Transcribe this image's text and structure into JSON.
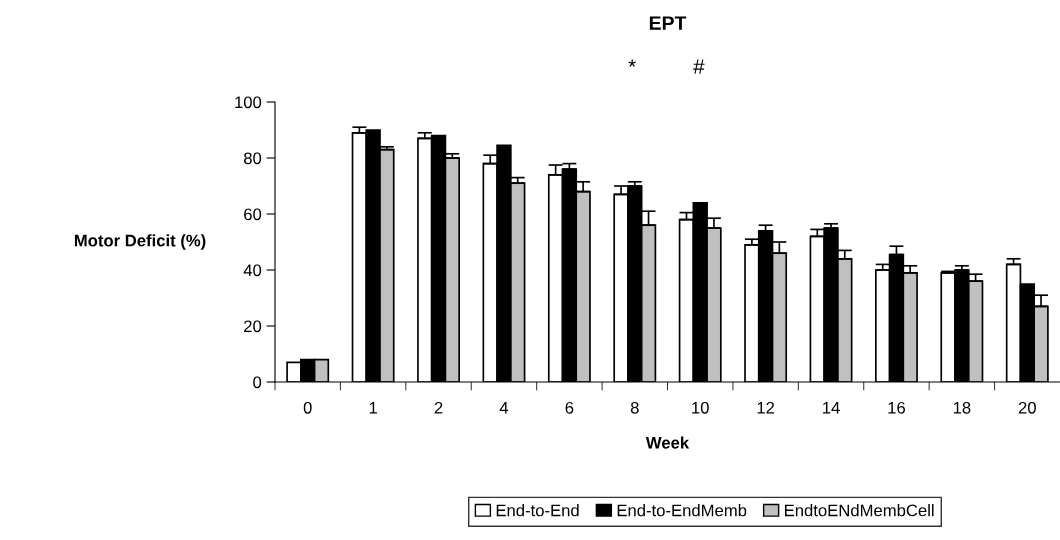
{
  "chart_data": {
    "type": "bar",
    "title": "EPT",
    "xlabel": "Week",
    "ylabel": "Motor Deficit (%)",
    "categories": [
      "0",
      "1",
      "2",
      "4",
      "6",
      "8",
      "10",
      "12",
      "14",
      "16",
      "18",
      "20"
    ],
    "series": [
      {
        "name": "End-to-End",
        "color": "#ffffff",
        "values": [
          7,
          89,
          87,
          78,
          74,
          67,
          58,
          49,
          52,
          40,
          39,
          42
        ],
        "errors": [
          null,
          [
            89,
            91
          ],
          [
            87,
            89
          ],
          [
            78,
            81
          ],
          [
            74,
            77.5
          ],
          [
            67,
            70
          ],
          [
            58,
            60.5
          ],
          [
            49,
            51
          ],
          [
            52,
            54.5
          ],
          [
            40,
            42
          ],
          [
            39,
            39.5
          ],
          [
            42,
            44
          ]
        ]
      },
      {
        "name": "End-to-EndMemb",
        "color": "#000000",
        "values": [
          8,
          90,
          88,
          84.5,
          76,
          70,
          64,
          54,
          55,
          45.5,
          40,
          35
        ],
        "errors": [
          null,
          null,
          null,
          null,
          [
            76,
            78
          ],
          [
            70,
            71.5
          ],
          null,
          [
            54,
            56
          ],
          [
            55,
            56.5
          ],
          [
            45.5,
            48.5
          ],
          [
            40,
            41.5
          ],
          null
        ]
      },
      {
        "name": "EndtoENdMembCell",
        "color": "#c0c0c0",
        "values": [
          8,
          83,
          80,
          71,
          68,
          56,
          55,
          46,
          44,
          39,
          36,
          27
        ],
        "errors": [
          null,
          [
            83,
            84
          ],
          [
            80,
            81.5
          ],
          [
            71,
            73
          ],
          [
            68,
            71.5
          ],
          [
            56,
            61
          ],
          [
            55,
            58.5
          ],
          [
            46,
            50
          ],
          [
            44,
            47
          ],
          [
            39,
            41.5
          ],
          [
            36,
            38.5
          ],
          [
            27,
            31
          ]
        ]
      }
    ],
    "ylim": [
      0,
      100
    ],
    "yticks": [
      0,
      20,
      40,
      60,
      80,
      100
    ],
    "grid": false,
    "legend": "bottom",
    "annotations": [
      "*",
      "#"
    ]
  }
}
